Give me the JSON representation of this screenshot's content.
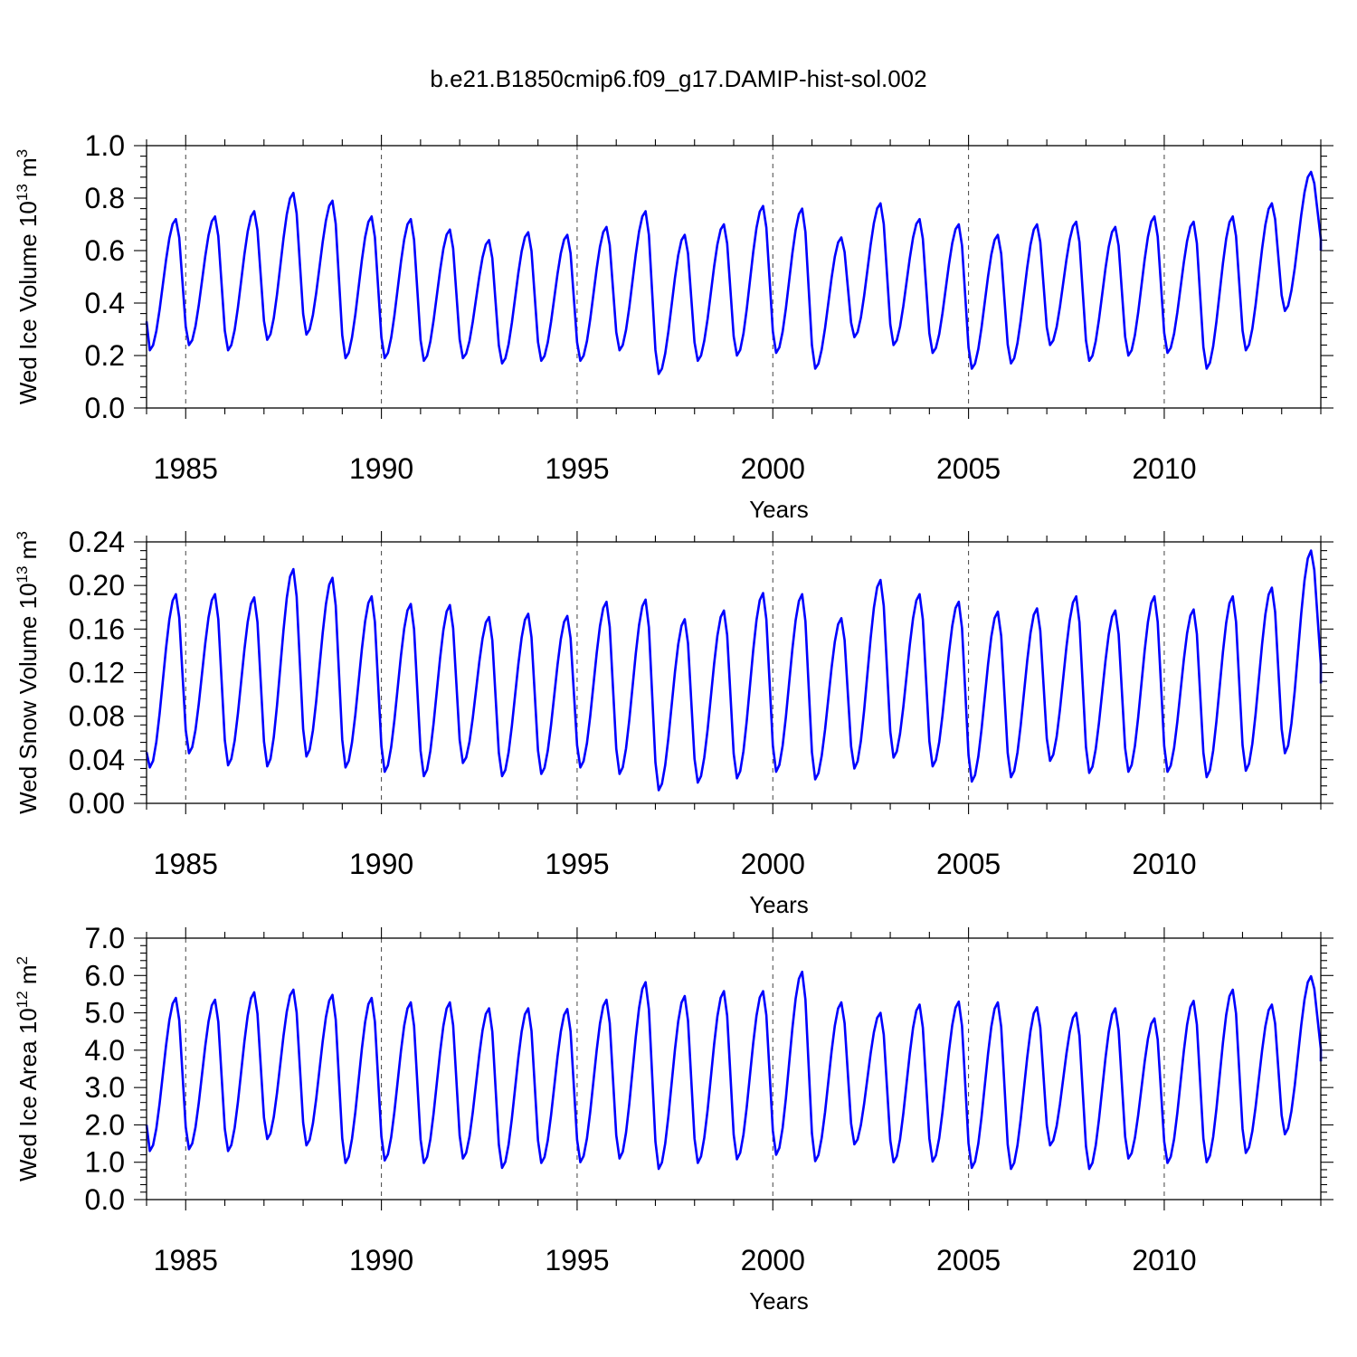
{
  "figure_title": "b.e21.B1850cmip6.f09_g17.DAMIP-hist-sol.002",
  "chart_data": [
    {
      "type": "line",
      "name": "ice-volume",
      "ylabel": "Wed Ice Volume",
      "ylabel_exp": "10",
      "ylabel_sup1": "13",
      "ylabel_unit": "m",
      "ylabel_sup2": "3",
      "xlabel": "Years",
      "xlim": [
        1984.0,
        2014.0
      ],
      "ylim": [
        0.0,
        1.0
      ],
      "yticks": [
        "0.0",
        "0.2",
        "0.4",
        "0.6",
        "0.8",
        "1.0"
      ],
      "xticks": [
        "1985",
        "1990",
        "1995",
        "2000",
        "2005",
        "2010"
      ],
      "gridlines_x": [
        1985,
        1990,
        1995,
        2000,
        2005,
        2010
      ],
      "color": "#0000ff",
      "start": 1984.0,
      "step": 0.0833333,
      "years_min": [
        1984,
        1985,
        1986,
        1987,
        1988,
        1989,
        1990,
        1991,
        1992,
        1993,
        1994,
        1995,
        1996,
        1997,
        1998,
        1999,
        2000,
        2001,
        2002,
        2003,
        2004,
        2005,
        2006,
        2007,
        2008,
        2009,
        2010,
        2011,
        2012,
        2013
      ],
      "minima": [
        0.22,
        0.24,
        0.22,
        0.26,
        0.28,
        0.19,
        0.19,
        0.18,
        0.19,
        0.17,
        0.18,
        0.18,
        0.22,
        0.13,
        0.18,
        0.2,
        0.21,
        0.15,
        0.27,
        0.24,
        0.21,
        0.15,
        0.17,
        0.24,
        0.18,
        0.2,
        0.21,
        0.15,
        0.22,
        0.37
      ],
      "maxima": [
        0.72,
        0.73,
        0.75,
        0.82,
        0.79,
        0.73,
        0.72,
        0.68,
        0.64,
        0.67,
        0.66,
        0.69,
        0.75,
        0.66,
        0.7,
        0.77,
        0.76,
        0.65,
        0.78,
        0.72,
        0.7,
        0.66,
        0.7,
        0.71,
        0.69,
        0.73,
        0.71,
        0.73,
        0.78,
        0.9
      ],
      "first_value": 0.33,
      "last_value": 0.6
    },
    {
      "type": "line",
      "name": "snow-volume",
      "ylabel": "Wed Snow Volume",
      "ylabel_exp": "10",
      "ylabel_sup1": "13",
      "ylabel_unit": "m",
      "ylabel_sup2": "3",
      "xlabel": "Years",
      "xlim": [
        1984.0,
        2014.0
      ],
      "ylim": [
        0.0,
        0.24
      ],
      "yticks": [
        "0.00",
        "0.04",
        "0.08",
        "0.12",
        "0.16",
        "0.20",
        "0.24"
      ],
      "xticks": [
        "1985",
        "1990",
        "1995",
        "2000",
        "2005",
        "2010"
      ],
      "gridlines_x": [
        1985,
        1990,
        1995,
        2000,
        2005,
        2010
      ],
      "color": "#0000ff",
      "start": 1984.0,
      "step": 0.0833333,
      "years_min": [
        1984,
        1985,
        1986,
        1987,
        1988,
        1989,
        1990,
        1991,
        1992,
        1993,
        1994,
        1995,
        1996,
        1997,
        1998,
        1999,
        2000,
        2001,
        2002,
        2003,
        2004,
        2005,
        2006,
        2007,
        2008,
        2009,
        2010,
        2011,
        2012,
        2013
      ],
      "minima": [
        0.033,
        0.046,
        0.035,
        0.034,
        0.043,
        0.033,
        0.029,
        0.025,
        0.037,
        0.025,
        0.027,
        0.033,
        0.027,
        0.012,
        0.019,
        0.023,
        0.029,
        0.022,
        0.032,
        0.042,
        0.034,
        0.02,
        0.024,
        0.039,
        0.028,
        0.029,
        0.029,
        0.024,
        0.03,
        0.046
      ],
      "maxima": [
        0.192,
        0.192,
        0.189,
        0.215,
        0.207,
        0.19,
        0.183,
        0.182,
        0.171,
        0.174,
        0.172,
        0.185,
        0.187,
        0.169,
        0.177,
        0.193,
        0.192,
        0.17,
        0.205,
        0.192,
        0.185,
        0.176,
        0.179,
        0.19,
        0.177,
        0.19,
        0.178,
        0.19,
        0.198,
        0.232
      ],
      "first_value": 0.047,
      "last_value": 0.11
    },
    {
      "type": "line",
      "name": "ice-area",
      "ylabel": "Wed Ice Area",
      "ylabel_exp": "10",
      "ylabel_sup1": "12",
      "ylabel_unit": "m",
      "ylabel_sup2": "2",
      "xlabel": "Years",
      "xlim": [
        1984.0,
        2014.0
      ],
      "ylim": [
        0.0,
        7.0
      ],
      "yticks": [
        "0.0",
        "1.0",
        "2.0",
        "3.0",
        "4.0",
        "5.0",
        "6.0",
        "7.0"
      ],
      "xticks": [
        "1985",
        "1990",
        "1995",
        "2000",
        "2005",
        "2010"
      ],
      "gridlines_x": [
        1985,
        1990,
        1995,
        2000,
        2005,
        2010
      ],
      "color": "#0000ff",
      "start": 1984.0,
      "step": 0.0833333,
      "years_min": [
        1984,
        1985,
        1986,
        1987,
        1988,
        1989,
        1990,
        1991,
        1992,
        1993,
        1994,
        1995,
        1996,
        1997,
        1998,
        1999,
        2000,
        2001,
        2002,
        2003,
        2004,
        2005,
        2006,
        2007,
        2008,
        2009,
        2010,
        2011,
        2012,
        2013
      ],
      "minima": [
        1.3,
        1.35,
        1.3,
        1.62,
        1.45,
        0.98,
        1.05,
        0.98,
        1.1,
        0.85,
        0.98,
        1.0,
        1.1,
        0.82,
        0.98,
        1.08,
        1.2,
        1.03,
        1.48,
        1.0,
        1.02,
        0.85,
        0.82,
        1.45,
        0.82,
        1.1,
        0.98,
        1.0,
        1.25,
        1.75
      ],
      "maxima": [
        5.4,
        5.35,
        5.55,
        5.62,
        5.48,
        5.4,
        5.28,
        5.28,
        5.12,
        5.12,
        5.1,
        5.35,
        5.82,
        5.45,
        5.58,
        5.58,
        6.1,
        5.28,
        5.0,
        5.22,
        5.3,
        5.28,
        5.15,
        5.0,
        5.12,
        4.85,
        5.32,
        5.62,
        5.22,
        5.98
      ],
      "first_value": 2.0,
      "last_value": 3.7
    }
  ]
}
